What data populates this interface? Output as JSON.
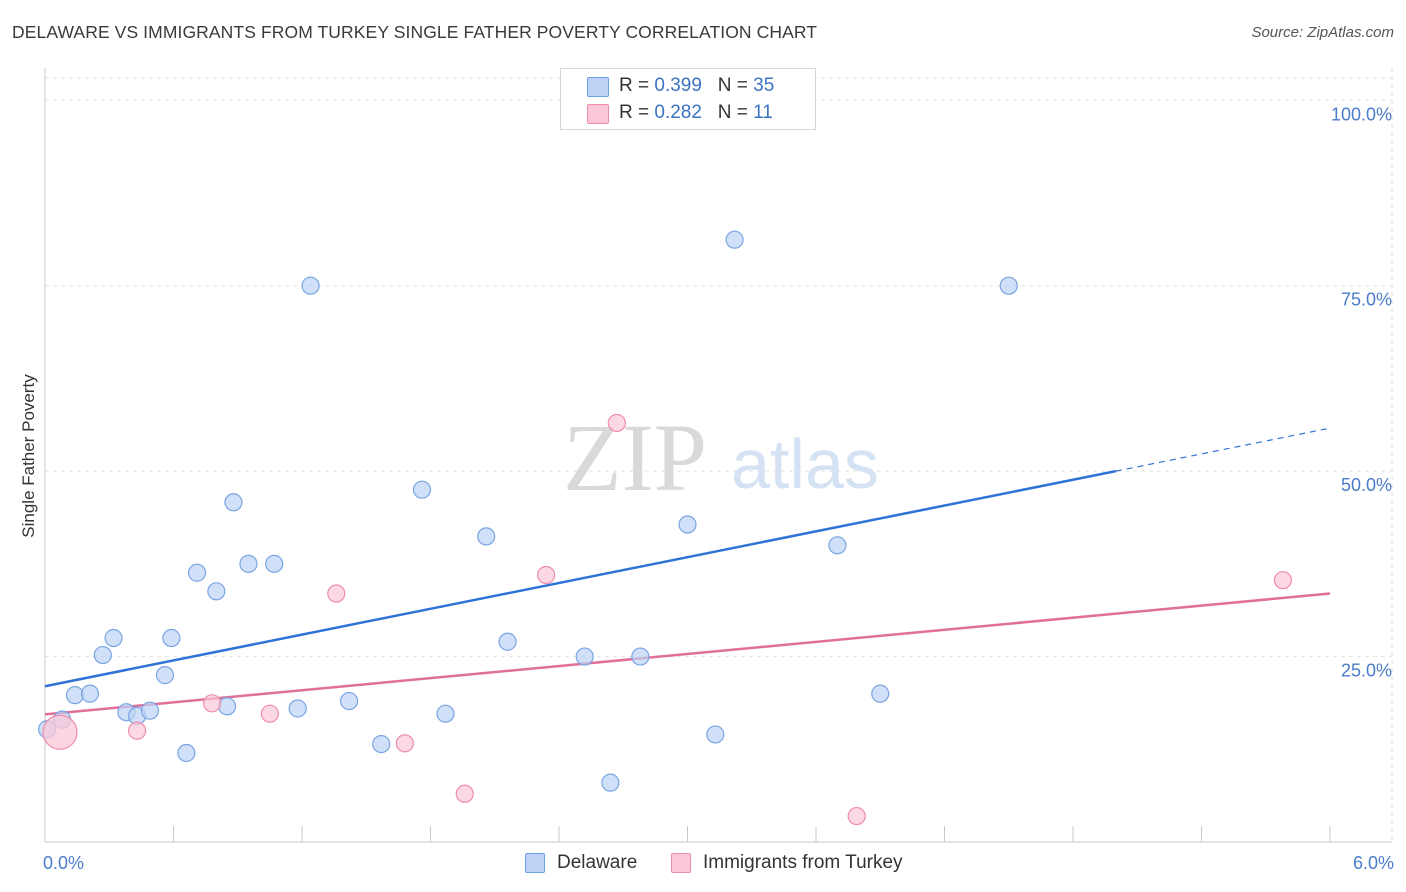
{
  "title": "DELAWARE VS IMMIGRANTS FROM TURKEY SINGLE FATHER POVERTY CORRELATION CHART",
  "source": "Source: ZipAtlas.com",
  "watermark": {
    "zip": "ZIP",
    "atlas": "atlas"
  },
  "legend_top": [
    {
      "r_label": "R = ",
      "r_value": "0.399",
      "n_label": "N = ",
      "n_value": "35"
    },
    {
      "r_label": "R = ",
      "r_value": "0.282",
      "n_label": "N = ",
      "n_value": "11"
    }
  ],
  "chart_data": {
    "type": "scatter",
    "title": "DELAWARE VS IMMIGRANTS FROM TURKEY SINGLE FATHER POVERTY CORRELATION CHART",
    "xlabel": "",
    "ylabel": "Single Father Poverty",
    "xlim": [
      0,
      6
    ],
    "ylim": [
      0,
      103
    ],
    "x_tick_labels": [
      "0.0%",
      "6.0%"
    ],
    "y_ticks": [
      25,
      50,
      75,
      100
    ],
    "y_tick_labels": [
      "25.0%",
      "50.0%",
      "75.0%",
      "100.0%"
    ],
    "grid": true,
    "legend_position": "top-center",
    "colors": {
      "delaware": "#6f9fe0",
      "turkey": "#f08cab",
      "delaware_line": "#2f73d6",
      "turkey_line": "#e0709a"
    },
    "series": [
      {
        "name": "Delaware",
        "r": 0.399,
        "n": 35,
        "trend": {
          "x0": 0,
          "y0": 21.0,
          "x1": 5.0,
          "y1": 50.0,
          "dash_to_x": 6.0,
          "dash_to_y": 55.8
        },
        "points": [
          [
            0.01,
            15.2
          ],
          [
            0.08,
            16.5
          ],
          [
            0.14,
            19.8
          ],
          [
            0.21,
            20.0
          ],
          [
            0.27,
            25.2
          ],
          [
            0.32,
            27.5
          ],
          [
            0.38,
            17.5
          ],
          [
            0.43,
            17.0
          ],
          [
            0.49,
            17.7
          ],
          [
            0.56,
            22.5
          ],
          [
            0.59,
            27.5
          ],
          [
            0.66,
            12.0
          ],
          [
            0.71,
            36.3
          ],
          [
            0.8,
            33.8
          ],
          [
            0.85,
            18.3
          ],
          [
            0.88,
            45.8
          ],
          [
            0.95,
            37.5
          ],
          [
            1.07,
            37.5
          ],
          [
            1.18,
            18.0
          ],
          [
            1.24,
            75.0
          ],
          [
            1.42,
            19.0
          ],
          [
            1.57,
            13.2
          ],
          [
            1.76,
            47.5
          ],
          [
            1.87,
            17.3
          ],
          [
            2.06,
            41.2
          ],
          [
            2.16,
            27.0
          ],
          [
            2.52,
            25.0
          ],
          [
            2.64,
            8.0
          ],
          [
            2.78,
            25.0
          ],
          [
            3.0,
            42.8
          ],
          [
            3.13,
            14.5
          ],
          [
            3.22,
            81.2
          ],
          [
            3.7,
            40.0
          ],
          [
            3.9,
            20.0
          ],
          [
            4.5,
            75.0
          ]
        ]
      },
      {
        "name": "Immigrants from Turkey",
        "r": 0.282,
        "n": 11,
        "trend": {
          "x0": 0,
          "y0": 17.2,
          "x1": 6.0,
          "y1": 33.5
        },
        "points": [
          [
            0.07,
            14.8
          ],
          [
            0.43,
            15.0
          ],
          [
            0.78,
            18.7
          ],
          [
            1.05,
            17.3
          ],
          [
            1.36,
            33.5
          ],
          [
            1.68,
            13.3
          ],
          [
            1.96,
            6.5
          ],
          [
            2.34,
            36.0
          ],
          [
            2.67,
            56.5
          ],
          [
            3.79,
            3.5
          ],
          [
            5.78,
            35.3
          ]
        ]
      }
    ]
  }
}
